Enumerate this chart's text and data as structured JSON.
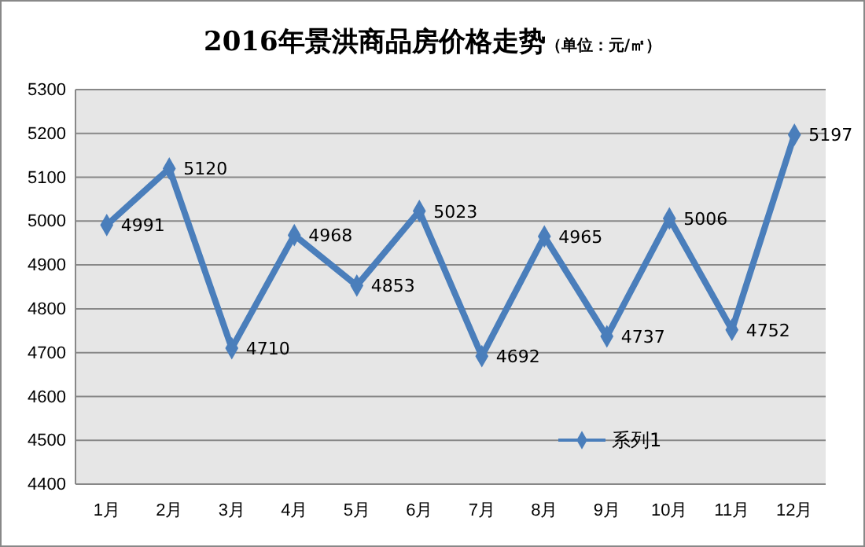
{
  "chart_data": {
    "type": "line",
    "title": "2016年景洪商品房价格走势",
    "subtitle": "（单位：元/㎡）",
    "categories": [
      "1月",
      "2月",
      "3月",
      "4月",
      "5月",
      "6月",
      "7月",
      "8月",
      "9月",
      "10月",
      "11月",
      "12月"
    ],
    "series": [
      {
        "name": "系列1",
        "color": "#4a7ebb",
        "values": [
          4991,
          5120,
          4710,
          4968,
          4853,
          5023,
          4692,
          4965,
          4737,
          5006,
          4752,
          5197
        ]
      }
    ],
    "ylim": [
      4400,
      5300
    ],
    "yticks": [
      4400,
      4500,
      4600,
      4700,
      4800,
      4900,
      5000,
      5100,
      5200,
      5300
    ],
    "grid": "y",
    "legend": "bottom right",
    "marker": "diamond",
    "line_style": "solid",
    "data_labels": true
  }
}
